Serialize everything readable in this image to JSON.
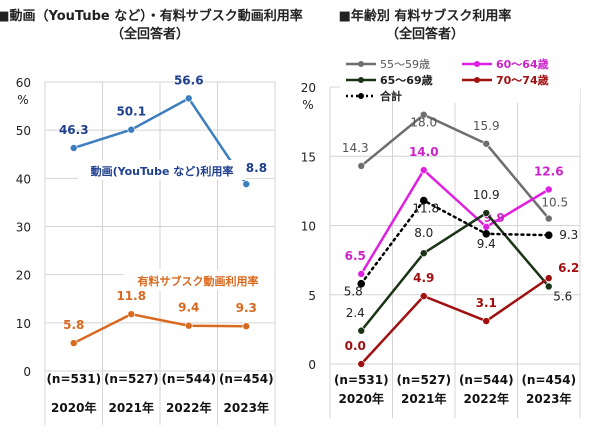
{
  "chart_data": [
    {
      "type": "line",
      "title": "■動画（YouTube など）・有料サブスク動画利用率",
      "subtitle": "（全回答者）",
      "ylabel": "%",
      "ylim": [
        0,
        60
      ],
      "yticks": [
        0,
        10,
        20,
        30,
        40,
        50,
        60
      ],
      "grid": true,
      "categories": [
        "2020年",
        "2021年",
        "2022年",
        "2023年"
      ],
      "sample_sizes": [
        "(n=531)",
        "(n=527)",
        "(n=544)",
        "(n=454)"
      ],
      "series": [
        {
          "name": "動画(YouTube など)利用率",
          "color": "#3d7ebf",
          "label_color": "#1f3f8f",
          "values": [
            46.3,
            50.1,
            56.6,
            38.8
          ]
        },
        {
          "name": "有料サブスク動画利用率",
          "color": "#d9691f",
          "label_color": "#d9691f",
          "values": [
            5.8,
            11.8,
            9.4,
            9.3
          ]
        }
      ]
    },
    {
      "type": "line",
      "title": "■年齢別  有料サブスク利用率",
      "subtitle": "（全回答者）",
      "ylabel": "%",
      "ylim": [
        0,
        20
      ],
      "yticks": [
        0,
        5,
        10,
        15,
        20
      ],
      "grid": true,
      "legend": "top",
      "categories": [
        "2020年",
        "2021年",
        "2022年",
        "2023年"
      ],
      "sample_sizes": [
        "(n=531)",
        "(n=527)",
        "(n=544)",
        "(n=454)"
      ],
      "series": [
        {
          "name": "55～59歳",
          "color": "#6e6e6e",
          "label_color": "#555555",
          "values": [
            14.3,
            18.0,
            15.9,
            10.5
          ]
        },
        {
          "name": "60～64歳",
          "color": "#e020e0",
          "label_color": "#cc22cc",
          "values": [
            6.5,
            14.0,
            9.9,
            12.6
          ]
        },
        {
          "name": "65～69歳",
          "color": "#1a3314",
          "label_color": "#222222",
          "values": [
            2.4,
            8.0,
            10.9,
            5.6
          ]
        },
        {
          "name": "70～74歳",
          "color": "#a01010",
          "label_color": "#a01010",
          "values": [
            0.0,
            4.9,
            3.1,
            6.2
          ]
        },
        {
          "name": "合計",
          "color": "#000000",
          "label_color": "#222222",
          "dotted": true,
          "values": [
            5.8,
            11.8,
            9.4,
            9.3
          ]
        }
      ]
    }
  ]
}
